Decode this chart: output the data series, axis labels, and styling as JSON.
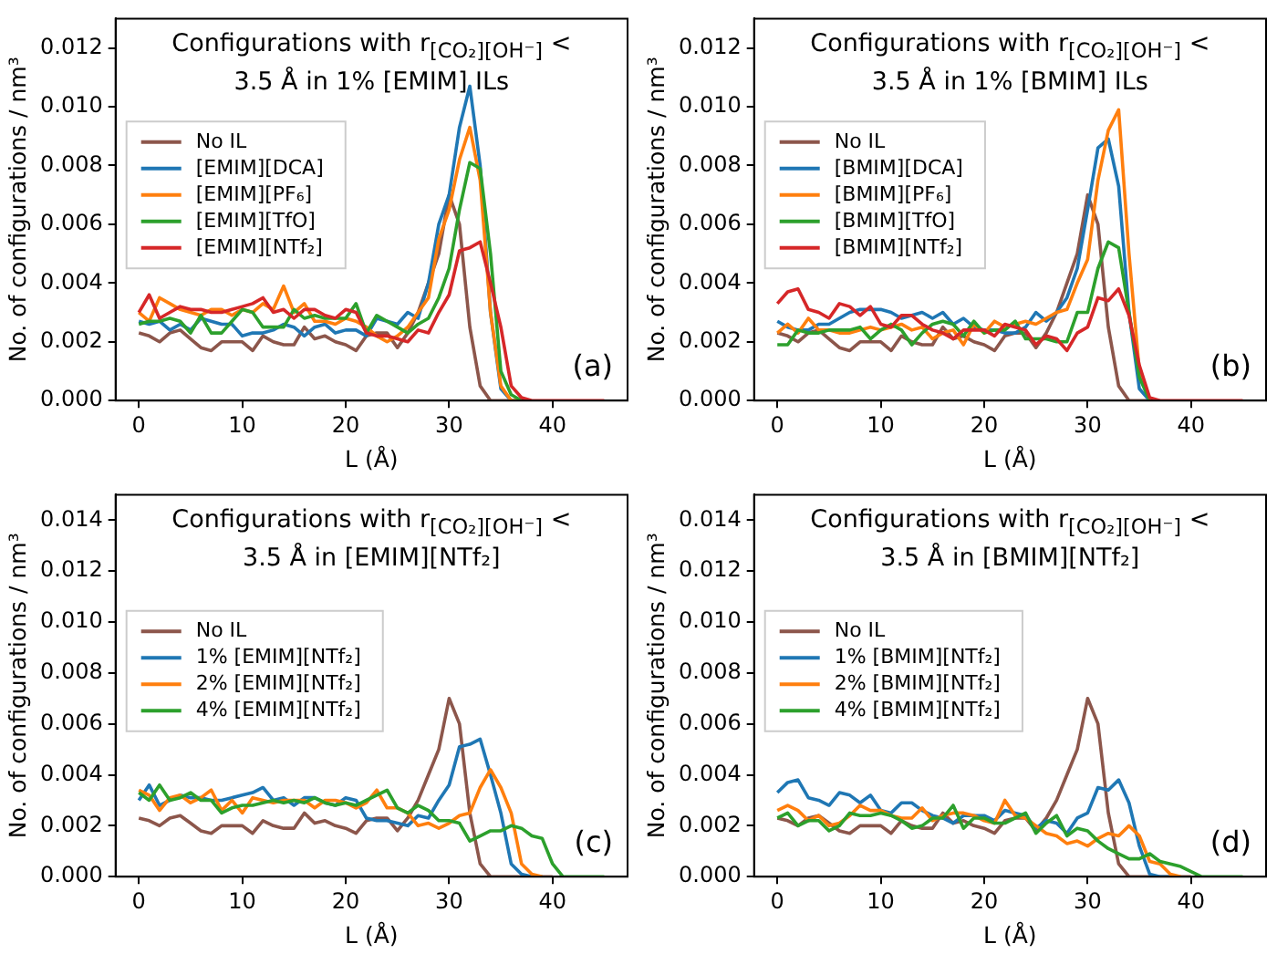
{
  "chart_data": [
    {
      "type": "line",
      "title": "Configurations with r$_{[CO₂][OH⁻]}$ < 3.5 Å in 1% [EMIM] ILs",
      "xlabel": "L (Å)",
      "ylabel": "No. of configurations / nm³",
      "legend": "center left",
      "annotations": [
        "(a)"
      ],
      "x": [
        0,
        1,
        2,
        3,
        4,
        5,
        6,
        7,
        8,
        9,
        10,
        11,
        12,
        13,
        14,
        15,
        16,
        17,
        18,
        19,
        20,
        21,
        22,
        23,
        24,
        25,
        26,
        27,
        28,
        29,
        30,
        31,
        32,
        33,
        34,
        35,
        36,
        37,
        38,
        39,
        40,
        41,
        45
      ],
      "xlim": [
        -2.25,
        47.25
      ],
      "xticks": [
        0,
        10,
        20,
        30,
        40
      ],
      "ylim": [
        0,
        0.013
      ],
      "yticks": [
        {
          "value": 0,
          "label": "0.000"
        },
        {
          "value": 0.002,
          "label": "0.002"
        },
        {
          "value": 0.004,
          "label": "0.004"
        },
        {
          "value": 0.006,
          "label": "0.006"
        },
        {
          "value": 0.008,
          "label": "0.008"
        },
        {
          "value": 0.01,
          "label": "0.010"
        },
        {
          "value": 0.012,
          "label": "0.012"
        }
      ],
      "series": [
        {
          "name": "No IL",
          "color": "#8c564b",
          "values": [
            0.0023,
            0.0022,
            0.002,
            0.0023,
            0.0024,
            0.0021,
            0.0018,
            0.0017,
            0.002,
            0.002,
            0.002,
            0.0017,
            0.0022,
            0.002,
            0.0019,
            0.0019,
            0.0025,
            0.0021,
            0.0022,
            0.002,
            0.0019,
            0.0017,
            0.0022,
            0.0023,
            0.0023,
            0.0018,
            0.0023,
            0.003,
            0.004,
            0.005,
            0.007,
            0.006,
            0.0025,
            0.0005,
            0,
            0,
            0,
            0,
            null,
            null,
            null,
            null,
            null
          ]
        },
        {
          "name": "[EMIM][DCA]",
          "color": "#1f77b4",
          "values": [
            0.0027,
            0.0026,
            0.0027,
            0.0024,
            0.0026,
            0.0024,
            0.0028,
            0.0027,
            0.0026,
            0.0026,
            0.0022,
            0.0023,
            0.0023,
            0.0024,
            0.0026,
            0.0025,
            0.0022,
            0.0025,
            0.0026,
            0.0023,
            0.0024,
            0.0024,
            0.0022,
            0.0028,
            0.0027,
            0.0026,
            0.003,
            0.0028,
            0.004,
            0.006,
            0.007,
            0.0093,
            0.0107,
            0.008,
            0.003,
            0.0004,
            0,
            0,
            null,
            null,
            null,
            null,
            null
          ]
        },
        {
          "name": "[EMIM][PF₆]",
          "color": "#ff7f0e",
          "values": [
            0.003,
            0.0027,
            0.0035,
            0.0033,
            0.0031,
            0.003,
            0.0029,
            0.0031,
            0.0031,
            0.0029,
            0.0031,
            0.003,
            0.0033,
            0.0031,
            0.0039,
            0.003,
            0.0033,
            0.0027,
            0.0027,
            0.0026,
            0.0028,
            0.0027,
            0.0025,
            0.0022,
            0.002,
            0.0022,
            0.0025,
            0.003,
            0.0035,
            0.0055,
            0.0065,
            0.0082,
            0.0093,
            0.0075,
            0.003,
            0.0005,
            0,
            0,
            null,
            null,
            null,
            null,
            null
          ]
        },
        {
          "name": "[EMIM][TfO]",
          "color": "#2ca02c",
          "values": [
            0.0026,
            0.0027,
            0.0027,
            0.0028,
            0.0027,
            0.0023,
            0.0029,
            0.0023,
            0.0023,
            0.0027,
            0.0031,
            0.003,
            0.0025,
            0.0025,
            0.0025,
            0.0031,
            0.0028,
            0.0029,
            0.0028,
            0.0028,
            0.0028,
            0.0033,
            0.0023,
            0.0029,
            0.0027,
            0.0025,
            0.0023,
            0.0026,
            0.0028,
            0.0035,
            0.0045,
            0.0065,
            0.0081,
            0.0079,
            0.005,
            0.001,
            0.0002,
            0,
            null,
            null,
            null,
            null,
            null
          ]
        },
        {
          "name": "[EMIM][NTf₂]",
          "color": "#d62728",
          "values": [
            0.003,
            0.0036,
            0.0028,
            0.003,
            0.0032,
            0.0031,
            0.0031,
            0.003,
            0.003,
            0.0031,
            0.0032,
            0.0033,
            0.0035,
            0.003,
            0.0031,
            0.0028,
            0.0031,
            0.0031,
            0.0029,
            0.0028,
            0.0031,
            0.003,
            0.0023,
            0.0022,
            0.0022,
            0.0021,
            0.002,
            0.0024,
            0.0023,
            0.003,
            0.0036,
            0.0051,
            0.0052,
            0.0054,
            0.004,
            0.0025,
            0.0005,
            0.0001,
            0,
            0,
            0,
            0,
            0
          ]
        }
      ]
    },
    {
      "type": "line",
      "title": "Configurations with r$_{[CO₂][OH⁻]}$ < 3.5 Å in 1% [BMIM] ILs",
      "xlabel": "L (Å)",
      "ylabel": "No. of configurations / nm³",
      "legend": "center left",
      "annotations": [
        "(b)"
      ],
      "x": [
        0,
        1,
        2,
        3,
        4,
        5,
        6,
        7,
        8,
        9,
        10,
        11,
        12,
        13,
        14,
        15,
        16,
        17,
        18,
        19,
        20,
        21,
        22,
        23,
        24,
        25,
        26,
        27,
        28,
        29,
        30,
        31,
        32,
        33,
        34,
        35,
        36,
        37,
        38,
        39,
        40,
        41,
        45
      ],
      "xlim": [
        -2.25,
        47.25
      ],
      "xticks": [
        0,
        10,
        20,
        30,
        40
      ],
      "ylim": [
        0,
        0.013
      ],
      "yticks": [
        {
          "value": 0,
          "label": "0.000"
        },
        {
          "value": 0.002,
          "label": "0.002"
        },
        {
          "value": 0.004,
          "label": "0.004"
        },
        {
          "value": 0.006,
          "label": "0.006"
        },
        {
          "value": 0.008,
          "label": "0.008"
        },
        {
          "value": 0.01,
          "label": "0.010"
        },
        {
          "value": 0.012,
          "label": "0.012"
        }
      ],
      "series": [
        {
          "name": "No IL",
          "color": "#8c564b",
          "values": [
            0.0023,
            0.0022,
            0.002,
            0.0023,
            0.0024,
            0.0021,
            0.0018,
            0.0017,
            0.002,
            0.002,
            0.002,
            0.0017,
            0.0022,
            0.002,
            0.0019,
            0.0019,
            0.0025,
            0.0021,
            0.0022,
            0.002,
            0.0019,
            0.0017,
            0.0022,
            0.0023,
            0.0023,
            0.0018,
            0.0023,
            0.003,
            0.004,
            0.005,
            0.007,
            0.006,
            0.0025,
            0.0005,
            0,
            0,
            0,
            null,
            null,
            null,
            null,
            null,
            null
          ]
        },
        {
          "name": "[BMIM][DCA]",
          "color": "#1f77b4",
          "values": [
            0.0027,
            0.0025,
            0.0024,
            0.0024,
            0.0026,
            0.0026,
            0.0028,
            0.003,
            0.0031,
            0.0031,
            0.0031,
            0.003,
            0.0028,
            0.0029,
            0.003,
            0.0028,
            0.003,
            0.0026,
            0.0028,
            0.0025,
            0.0024,
            0.0024,
            0.0023,
            0.0023,
            0.0025,
            0.003,
            0.0027,
            0.003,
            0.0035,
            0.0045,
            0.0065,
            0.0086,
            0.0089,
            0.0073,
            0.003,
            0.0004,
            0,
            null,
            null,
            null,
            null,
            null,
            null
          ]
        },
        {
          "name": "[BMIM][PF₆]",
          "color": "#ff7f0e",
          "values": [
            0.0023,
            0.0026,
            0.0023,
            0.0028,
            0.0024,
            0.0024,
            0.0023,
            0.0023,
            0.0024,
            0.0025,
            0.0024,
            0.0025,
            0.0026,
            0.0024,
            0.0025,
            0.0021,
            0.0023,
            0.0024,
            0.0019,
            0.0026,
            0.0023,
            0.0027,
            0.0025,
            0.0026,
            0.0027,
            0.0026,
            0.0028,
            0.003,
            0.0031,
            0.004,
            0.0048,
            0.0075,
            0.0092,
            0.0099,
            0.005,
            0.001,
            0,
            null,
            null,
            null,
            null,
            null,
            null
          ]
        },
        {
          "name": "[BMIM][TfO]",
          "color": "#2ca02c",
          "values": [
            0.0019,
            0.0019,
            0.0024,
            0.0023,
            0.0023,
            0.0024,
            0.0024,
            0.0024,
            0.0025,
            0.0021,
            0.0024,
            0.0026,
            0.0024,
            0.0019,
            0.0023,
            0.0026,
            0.0027,
            0.0026,
            0.0022,
            0.0027,
            0.0023,
            0.0024,
            0.0024,
            0.0027,
            0.0021,
            0.0021,
            0.0021,
            0.002,
            0.002,
            0.003,
            0.003,
            0.0045,
            0.0054,
            0.0052,
            0.003,
            0.0008,
            0,
            null,
            null,
            null,
            null,
            null,
            null
          ]
        },
        {
          "name": "[BMIM][NTf₂]",
          "color": "#d62728",
          "values": [
            0.0033,
            0.0037,
            0.0038,
            0.0031,
            0.003,
            0.0028,
            0.0033,
            0.0032,
            0.0029,
            0.0032,
            0.0026,
            0.0025,
            0.0029,
            0.0029,
            0.0026,
            0.0024,
            0.0023,
            0.0021,
            0.0024,
            0.0024,
            0.0024,
            0.0022,
            0.0026,
            0.0025,
            0.0024,
            0.0019,
            0.0022,
            0.0021,
            0.0017,
            0.0023,
            0.0025,
            0.0035,
            0.0034,
            0.0038,
            0.0029,
            0.0012,
            0.0001,
            0,
            0,
            0,
            0,
            0,
            0
          ]
        }
      ]
    },
    {
      "type": "line",
      "title": "Configurations with r$_{[CO₂][OH⁻]}$ < 3.5 Å in [EMIM][NTf₂]",
      "xlabel": "L (Å)",
      "ylabel": "No. of configurations / nm³",
      "legend": "center left",
      "annotations": [
        "(c)"
      ],
      "x": [
        0,
        1,
        2,
        3,
        4,
        5,
        6,
        7,
        8,
        9,
        10,
        11,
        12,
        13,
        14,
        15,
        16,
        17,
        18,
        19,
        20,
        21,
        22,
        23,
        24,
        25,
        26,
        27,
        28,
        29,
        30,
        31,
        32,
        33,
        34,
        35,
        36,
        37,
        38,
        39,
        40,
        41,
        45
      ],
      "xlim": [
        -2.25,
        47.25
      ],
      "xticks": [
        0,
        10,
        20,
        30,
        40
      ],
      "ylim": [
        0,
        0.015
      ],
      "yticks": [
        {
          "value": 0,
          "label": "0.000"
        },
        {
          "value": 0.002,
          "label": "0.002"
        },
        {
          "value": 0.004,
          "label": "0.004"
        },
        {
          "value": 0.006,
          "label": "0.006"
        },
        {
          "value": 0.008,
          "label": "0.008"
        },
        {
          "value": 0.01,
          "label": "0.010"
        },
        {
          "value": 0.012,
          "label": "0.012"
        },
        {
          "value": 0.014,
          "label": "0.014"
        }
      ],
      "series": [
        {
          "name": "No IL",
          "color": "#8c564b",
          "values": [
            0.0023,
            0.0022,
            0.002,
            0.0023,
            0.0024,
            0.0021,
            0.0018,
            0.0017,
            0.002,
            0.002,
            0.002,
            0.0017,
            0.0022,
            0.002,
            0.0019,
            0.0019,
            0.0025,
            0.0021,
            0.0022,
            0.002,
            0.0019,
            0.0017,
            0.0022,
            0.0023,
            0.0023,
            0.0018,
            0.0023,
            0.003,
            0.004,
            0.005,
            0.007,
            0.006,
            0.0025,
            0.0005,
            0,
            0,
            0,
            0,
            0,
            0,
            0,
            null,
            null
          ]
        },
        {
          "name": "1% [EMIM][NTf₂]",
          "color": "#1f77b4",
          "values": [
            0.003,
            0.0036,
            0.0028,
            0.003,
            0.0032,
            0.0031,
            0.0031,
            0.003,
            0.003,
            0.0031,
            0.0032,
            0.0033,
            0.0035,
            0.003,
            0.0031,
            0.0028,
            0.0031,
            0.0031,
            0.0029,
            0.0028,
            0.0031,
            0.003,
            0.0023,
            0.0022,
            0.0022,
            0.0021,
            0.002,
            0.0024,
            0.0023,
            0.003,
            0.0036,
            0.0051,
            0.0052,
            0.0054,
            0.004,
            0.0025,
            0.0005,
            0.0001,
            0,
            0,
            null,
            null,
            null
          ]
        },
        {
          "name": "2% [EMIM][NTf₂]",
          "color": "#ff7f0e",
          "values": [
            0.0034,
            0.0032,
            0.0026,
            0.0031,
            0.0032,
            0.0029,
            0.0031,
            0.0034,
            0.0026,
            0.003,
            0.0025,
            0.0031,
            0.003,
            0.0029,
            0.003,
            0.003,
            0.003,
            0.0027,
            0.003,
            0.003,
            0.0029,
            0.0027,
            0.0029,
            0.0034,
            0.0027,
            0.0027,
            0.0025,
            0.002,
            0.0021,
            0.0019,
            0.0021,
            0.0024,
            0.0025,
            0.0035,
            0.0042,
            0.0035,
            0.0025,
            0.0005,
            0.0001,
            0,
            null,
            null,
            null
          ]
        },
        {
          "name": "4% [EMIM][NTf₂]",
          "color": "#2ca02c",
          "values": [
            0.0033,
            0.003,
            0.0036,
            0.003,
            0.0031,
            0.0033,
            0.003,
            0.003,
            0.0025,
            0.0027,
            0.0028,
            0.0028,
            0.0029,
            0.003,
            0.0029,
            0.003,
            0.0029,
            0.0031,
            0.0029,
            0.0028,
            0.0029,
            0.0028,
            0.003,
            0.0032,
            0.0034,
            0.0027,
            0.0025,
            0.0028,
            0.0026,
            0.0022,
            0.0022,
            0.0021,
            0.0014,
            0.0016,
            0.0018,
            0.0018,
            0.002,
            0.0019,
            0.0016,
            0.0015,
            0.0005,
            0,
            0
          ]
        }
      ]
    },
    {
      "type": "line",
      "title": "Configurations with r$_{[CO₂][OH⁻]}$ < 3.5 Å in [BMIM][NTf₂]",
      "xlabel": "L (Å)",
      "ylabel": "No. of configurations / nm³",
      "legend": "center left",
      "annotations": [
        "(d)"
      ],
      "x": [
        0,
        1,
        2,
        3,
        4,
        5,
        6,
        7,
        8,
        9,
        10,
        11,
        12,
        13,
        14,
        15,
        16,
        17,
        18,
        19,
        20,
        21,
        22,
        23,
        24,
        25,
        26,
        27,
        28,
        29,
        30,
        31,
        32,
        33,
        34,
        35,
        36,
        37,
        38,
        39,
        40,
        41,
        45
      ],
      "xlim": [
        -2.25,
        47.25
      ],
      "xticks": [
        0,
        10,
        20,
        30,
        40
      ],
      "ylim": [
        0,
        0.015
      ],
      "yticks": [
        {
          "value": 0,
          "label": "0.000"
        },
        {
          "value": 0.002,
          "label": "0.002"
        },
        {
          "value": 0.004,
          "label": "0.004"
        },
        {
          "value": 0.006,
          "label": "0.006"
        },
        {
          "value": 0.008,
          "label": "0.008"
        },
        {
          "value": 0.01,
          "label": "0.010"
        },
        {
          "value": 0.012,
          "label": "0.012"
        },
        {
          "value": 0.014,
          "label": "0.014"
        }
      ],
      "series": [
        {
          "name": "No IL",
          "color": "#8c564b",
          "values": [
            0.0023,
            0.0022,
            0.002,
            0.0023,
            0.0024,
            0.0021,
            0.0018,
            0.0017,
            0.002,
            0.002,
            0.002,
            0.0017,
            0.0022,
            0.002,
            0.0019,
            0.0019,
            0.0025,
            0.0021,
            0.0022,
            0.002,
            0.0019,
            0.0017,
            0.0022,
            0.0023,
            0.0023,
            0.0018,
            0.0023,
            0.003,
            0.004,
            0.005,
            0.007,
            0.006,
            0.0025,
            0.0005,
            0,
            0,
            0,
            0,
            0,
            0,
            0,
            null,
            null
          ]
        },
        {
          "name": "1% [BMIM][NTf₂]",
          "color": "#1f77b4",
          "values": [
            0.0033,
            0.0037,
            0.0038,
            0.0031,
            0.003,
            0.0028,
            0.0033,
            0.0032,
            0.0029,
            0.0032,
            0.0026,
            0.0025,
            0.0029,
            0.0029,
            0.0026,
            0.0024,
            0.0023,
            0.0021,
            0.0024,
            0.0024,
            0.0024,
            0.0022,
            0.0026,
            0.0025,
            0.0024,
            0.0019,
            0.0022,
            0.0021,
            0.0017,
            0.0023,
            0.0025,
            0.0035,
            0.0034,
            0.0038,
            0.0029,
            0.0012,
            0.0001,
            0,
            0,
            null,
            null,
            null,
            null
          ]
        },
        {
          "name": "2% [BMIM][NTf₂]",
          "color": "#ff7f0e",
          "values": [
            0.0026,
            0.0028,
            0.0026,
            0.0022,
            0.0024,
            0.002,
            0.0021,
            0.0024,
            0.0028,
            0.0026,
            0.0026,
            0.0024,
            0.0023,
            0.0023,
            0.0027,
            0.0022,
            0.0024,
            0.0025,
            0.0025,
            0.0024,
            0.0022,
            0.0021,
            0.003,
            0.0024,
            0.0023,
            0.002,
            0.0017,
            0.0016,
            0.0013,
            0.0014,
            0.0012,
            0.0015,
            0.0017,
            0.0016,
            0.002,
            0.0016,
            0.0006,
            0.0005,
            0.0001,
            0,
            null,
            null,
            null
          ]
        },
        {
          "name": "4% [BMIM][NTf₂]",
          "color": "#2ca02c",
          "values": [
            0.0023,
            0.0025,
            0.002,
            0.0022,
            0.0022,
            0.0018,
            0.002,
            0.0025,
            0.0024,
            0.0024,
            0.0025,
            0.0024,
            0.0022,
            0.0019,
            0.002,
            0.0023,
            0.0023,
            0.0028,
            0.0019,
            0.0023,
            0.0023,
            0.0021,
            0.0021,
            0.0023,
            0.0025,
            0.0017,
            0.0021,
            0.0024,
            0.0016,
            0.0019,
            0.0018,
            0.0014,
            0.0011,
            0.0009,
            0.0007,
            0.0007,
            0.0009,
            0.0006,
            0.0005,
            0.0004,
            0.0002,
            0,
            0
          ]
        }
      ]
    }
  ]
}
